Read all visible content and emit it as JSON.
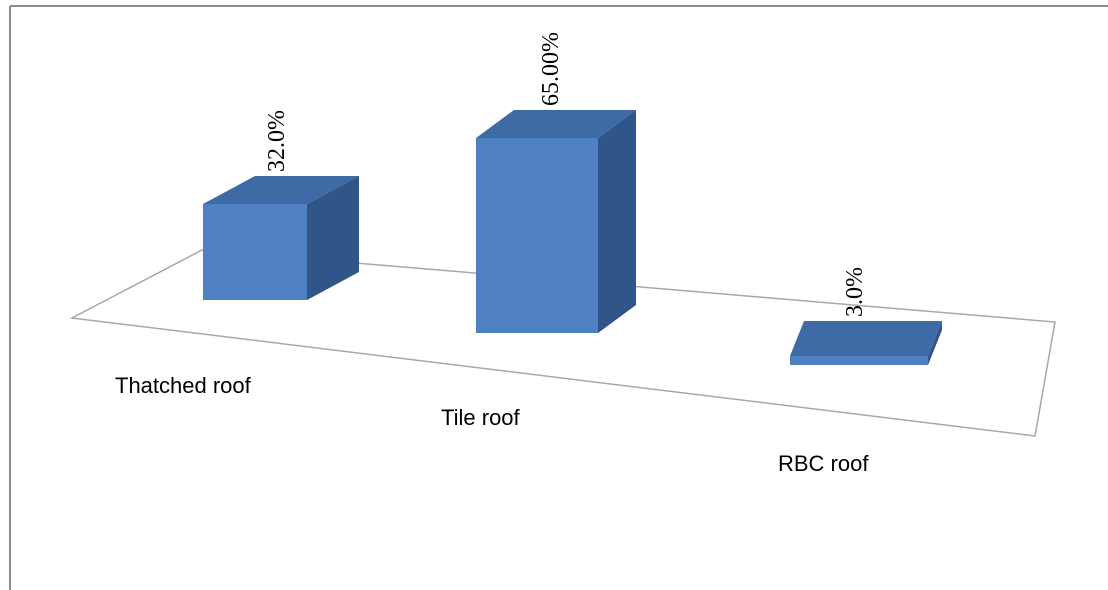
{
  "chart_data": {
    "type": "bar",
    "style": "3d-column",
    "categories": [
      "Thatched roof",
      "Tile roof",
      "RBC roof"
    ],
    "values": [
      32.0,
      65.0,
      3.0
    ],
    "value_labels": [
      "32.0%",
      "65.00%",
      "3.0%"
    ],
    "title": "",
    "xlabel": "",
    "ylabel": "",
    "ylim": [
      0,
      70
    ],
    "grid": false,
    "legend": "none",
    "colors": {
      "front": "#4f81c2",
      "side": "#2f5589",
      "top": "#3e6aa6",
      "floor_edge": "#a8a8a8",
      "border": "#8c8c8c"
    }
  }
}
